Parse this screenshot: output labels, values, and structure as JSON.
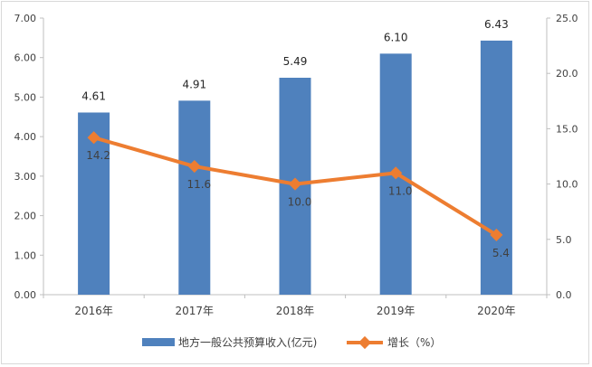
{
  "chart_data": {
    "type": "bar",
    "categories": [
      "2016年",
      "2017年",
      "2018年",
      "2019年",
      "2020年"
    ],
    "series": [
      {
        "name": "地方一般公共预算收入(亿元)",
        "type": "bar",
        "axis": "left",
        "values": [
          4.61,
          4.91,
          5.49,
          6.1,
          6.43
        ],
        "labels": [
          "4.61",
          "4.91",
          "5.49",
          "6.10",
          "6.43"
        ],
        "color": "#4f81bd"
      },
      {
        "name": "增长（%）",
        "type": "line",
        "axis": "right",
        "values": [
          14.2,
          11.6,
          10.0,
          11.0,
          5.4
        ],
        "labels": [
          "14.2",
          "11.6",
          "10.0",
          "11.0",
          "5.4"
        ],
        "color": "#ed7d31"
      }
    ],
    "left_axis": {
      "range": [
        0,
        7
      ],
      "ticks": [
        "0.00",
        "1.00",
        "2.00",
        "3.00",
        "4.00",
        "5.00",
        "6.00",
        "7.00"
      ]
    },
    "right_axis": {
      "range": [
        0,
        25
      ],
      "ticks": [
        "0.0",
        "5.0",
        "10.0",
        "15.0",
        "20.0",
        "25.0"
      ]
    },
    "grid": false,
    "legend_position": "bottom"
  }
}
